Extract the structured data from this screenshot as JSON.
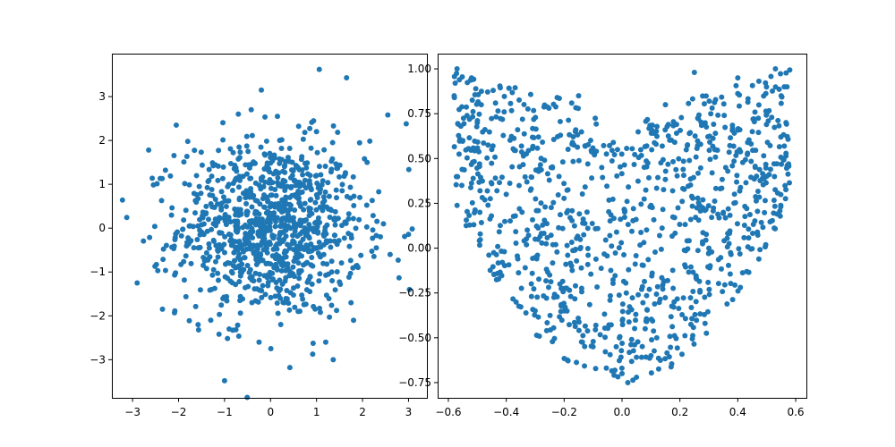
{
  "chart_data": [
    {
      "type": "scatter",
      "title": "",
      "xlabel": "",
      "ylabel": "",
      "xlim": [
        -3.45,
        3.4
      ],
      "ylim": [
        -3.87,
        3.98
      ],
      "xticks": [
        -3,
        -2,
        -1,
        0,
        1,
        2,
        3
      ],
      "yticks": [
        -3,
        -2,
        -1,
        0,
        1,
        2,
        3
      ],
      "xtick_labels": [
        "−3",
        "−2",
        "−1",
        "0",
        "1",
        "2",
        "3"
      ],
      "ytick_labels": [
        "−3",
        "−2",
        "−1",
        "0",
        "1",
        "2",
        "3"
      ],
      "color": "#1f77b4",
      "grid": false,
      "series": [
        {
          "x": [
            1.06,
            -0.2,
            2.55,
            2.95,
            -3.22,
            3.08,
            3.02,
            -1.0,
            0.42,
            -1.12,
            -0.42,
            -2.05,
            -2.65,
            -2.35,
            1.2,
            -1.8,
            2.6,
            -0.25,
            1.0,
            -2.9,
            -1.3,
            1.35,
            2.1,
            -0.7,
            0.6,
            -1.55,
            1.75,
            0.15,
            -0.9,
            2.3
          ],
          "y": [
            3.62,
            3.15,
            2.58,
            2.38,
            0.64,
            -0.02,
            -1.4,
            -3.48,
            -3.18,
            -2.42,
            2.7,
            2.35,
            1.78,
            -1.85,
            -2.6,
            1.98,
            -0.6,
            -2.6,
            2.2,
            -1.25,
            -2.1,
            1.95,
            1.5,
            2.6,
            -1.9,
            0.95,
            -1.7,
            2.55,
            -2.3,
            -0.45
          ]
        }
      ]
    },
    {
      "type": "scatter",
      "title": "",
      "xlabel": "",
      "ylabel": "",
      "xlim": [
        -0.637,
        0.637
      ],
      "ylim": [
        -0.835,
        1.085
      ],
      "xticks": [
        -0.6,
        -0.4,
        -0.2,
        0.0,
        0.2,
        0.4,
        0.6
      ],
      "yticks": [
        -0.75,
        -0.5,
        -0.25,
        0.0,
        0.25,
        0.5,
        0.75,
        1.0
      ],
      "xtick_labels": [
        "−0.6",
        "−0.4",
        "−0.2",
        "0.0",
        "0.2",
        "0.4",
        "0.6"
      ],
      "ytick_labels": [
        "−0.75",
        "−0.50",
        "−0.25",
        "0.00",
        "0.25",
        "0.50",
        "0.75",
        "1.00"
      ],
      "color": "#1f77b4",
      "grid": false,
      "series": [
        {
          "x": [
            -0.57,
            -0.58,
            0.57,
            0.53,
            -0.55,
            0.02,
            0.05,
            0.1,
            -0.02,
            0.0,
            0.08,
            -0.1,
            0.12,
            -0.2,
            0.18,
            -0.25,
            0.3,
            -0.3,
            0.35,
            -0.4,
            0.45,
            -0.45,
            0.5,
            -0.5,
            0.55,
            -0.52,
            0.4,
            -0.15,
            0.15,
            0.25
          ],
          "y": [
            1.0,
            0.85,
            0.9,
            1.0,
            0.6,
            -0.75,
            -0.72,
            -0.6,
            -0.55,
            -0.7,
            -0.45,
            -0.55,
            -0.5,
            -0.35,
            -0.3,
            -0.15,
            0.0,
            0.05,
            0.2,
            0.3,
            0.65,
            0.55,
            0.75,
            0.7,
            0.85,
            0.95,
            0.95,
            0.85,
            0.8,
            0.98
          ]
        }
      ]
    }
  ]
}
